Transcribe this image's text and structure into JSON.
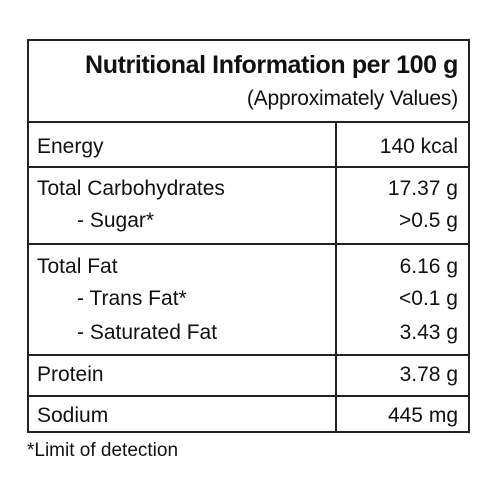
{
  "title": "Nutritional Information per 100 g",
  "subtitle": "(Approximately Values)",
  "rows": [
    {
      "label": "Energy",
      "value": "140 kcal"
    },
    {
      "label": "Total Carbohydrates",
      "value": "17.37 g"
    },
    {
      "label": "- Sugar*",
      "value": ">0.5 g"
    },
    {
      "label": "Total Fat",
      "value": "6.16 g"
    },
    {
      "label": "- Trans Fat*",
      "value": "<0.1 g"
    },
    {
      "label": "- Saturated Fat",
      "value": "3.43 g"
    },
    {
      "label": "Protein",
      "value": "3.78 g"
    },
    {
      "label": "Sodium",
      "value": "445 mg"
    }
  ],
  "footnote": "*Limit of detection"
}
